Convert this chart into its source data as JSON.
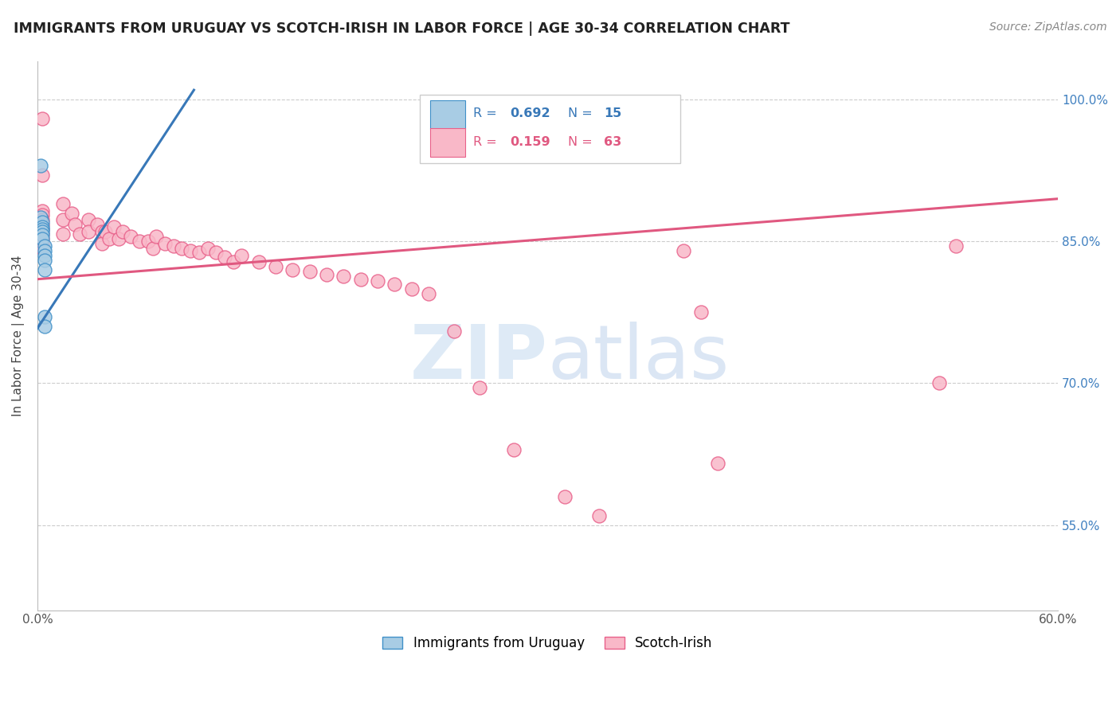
{
  "title": "IMMIGRANTS FROM URUGUAY VS SCOTCH-IRISH IN LABOR FORCE | AGE 30-34 CORRELATION CHART",
  "source": "Source: ZipAtlas.com",
  "ylabel_text": "In Labor Force | Age 30-34",
  "xmin": 0.0,
  "xmax": 0.6,
  "ymin": 0.46,
  "ymax": 1.04,
  "x_ticks": [
    0.0,
    0.1,
    0.2,
    0.3,
    0.4,
    0.5,
    0.6
  ],
  "x_tick_labels": [
    "0.0%",
    "",
    "",
    "",
    "",
    "",
    "60.0%"
  ],
  "y_ticks": [
    0.55,
    0.7,
    0.85,
    1.0
  ],
  "y_tick_labels": [
    "55.0%",
    "70.0%",
    "85.0%",
    "100.0%"
  ],
  "watermark_ZIP": "ZIP",
  "watermark_atlas": "atlas",
  "legend_blue_label": "Immigrants from Uruguay",
  "legend_pink_label": "Scotch-Irish",
  "blue_R": "0.692",
  "blue_N": "15",
  "pink_R": "0.159",
  "pink_N": "63",
  "blue_color": "#a8cce4",
  "pink_color": "#f9b8c8",
  "blue_edge_color": "#4090c8",
  "pink_edge_color": "#e8608a",
  "blue_line_color": "#3878b8",
  "pink_line_color": "#e05880",
  "blue_scatter": [
    [
      0.002,
      0.93
    ],
    [
      0.002,
      0.875
    ],
    [
      0.003,
      0.87
    ],
    [
      0.003,
      0.865
    ],
    [
      0.003,
      0.863
    ],
    [
      0.003,
      0.86
    ],
    [
      0.003,
      0.857
    ],
    [
      0.003,
      0.853
    ],
    [
      0.004,
      0.845
    ],
    [
      0.004,
      0.84
    ],
    [
      0.004,
      0.835
    ],
    [
      0.004,
      0.83
    ],
    [
      0.004,
      0.82
    ],
    [
      0.004,
      0.77
    ],
    [
      0.004,
      0.76
    ]
  ],
  "pink_scatter": [
    [
      0.003,
      0.98
    ],
    [
      0.003,
      0.92
    ],
    [
      0.003,
      0.882
    ],
    [
      0.003,
      0.878
    ],
    [
      0.003,
      0.873
    ],
    [
      0.003,
      0.868
    ],
    [
      0.003,
      0.863
    ],
    [
      0.003,
      0.858
    ],
    [
      0.003,
      0.853
    ],
    [
      0.003,
      0.848
    ],
    [
      0.003,
      0.843
    ],
    [
      0.015,
      0.89
    ],
    [
      0.015,
      0.873
    ],
    [
      0.015,
      0.858
    ],
    [
      0.02,
      0.88
    ],
    [
      0.022,
      0.868
    ],
    [
      0.025,
      0.858
    ],
    [
      0.03,
      0.873
    ],
    [
      0.03,
      0.86
    ],
    [
      0.035,
      0.868
    ],
    [
      0.038,
      0.86
    ],
    [
      0.038,
      0.848
    ],
    [
      0.04,
      0.86
    ],
    [
      0.042,
      0.853
    ],
    [
      0.045,
      0.865
    ],
    [
      0.048,
      0.853
    ],
    [
      0.05,
      0.86
    ],
    [
      0.055,
      0.855
    ],
    [
      0.06,
      0.85
    ],
    [
      0.065,
      0.85
    ],
    [
      0.068,
      0.843
    ],
    [
      0.07,
      0.855
    ],
    [
      0.075,
      0.848
    ],
    [
      0.08,
      0.845
    ],
    [
      0.085,
      0.843
    ],
    [
      0.09,
      0.84
    ],
    [
      0.095,
      0.838
    ],
    [
      0.1,
      0.843
    ],
    [
      0.105,
      0.838
    ],
    [
      0.11,
      0.833
    ],
    [
      0.115,
      0.828
    ],
    [
      0.12,
      0.835
    ],
    [
      0.13,
      0.828
    ],
    [
      0.14,
      0.823
    ],
    [
      0.15,
      0.82
    ],
    [
      0.16,
      0.818
    ],
    [
      0.17,
      0.815
    ],
    [
      0.18,
      0.813
    ],
    [
      0.19,
      0.81
    ],
    [
      0.2,
      0.808
    ],
    [
      0.21,
      0.805
    ],
    [
      0.22,
      0.8
    ],
    [
      0.23,
      0.795
    ],
    [
      0.245,
      0.755
    ],
    [
      0.26,
      0.695
    ],
    [
      0.28,
      0.63
    ],
    [
      0.31,
      0.58
    ],
    [
      0.33,
      0.56
    ],
    [
      0.38,
      0.84
    ],
    [
      0.39,
      0.775
    ],
    [
      0.4,
      0.615
    ],
    [
      0.53,
      0.7
    ],
    [
      0.54,
      0.845
    ]
  ],
  "blue_line_x": [
    0.0,
    0.092
  ],
  "blue_line_y": [
    0.758,
    1.01
  ],
  "pink_line_x": [
    0.0,
    0.6
  ],
  "pink_line_y": [
    0.81,
    0.895
  ],
  "background_color": "#ffffff",
  "grid_color": "#cccccc",
  "grid_style": "--"
}
